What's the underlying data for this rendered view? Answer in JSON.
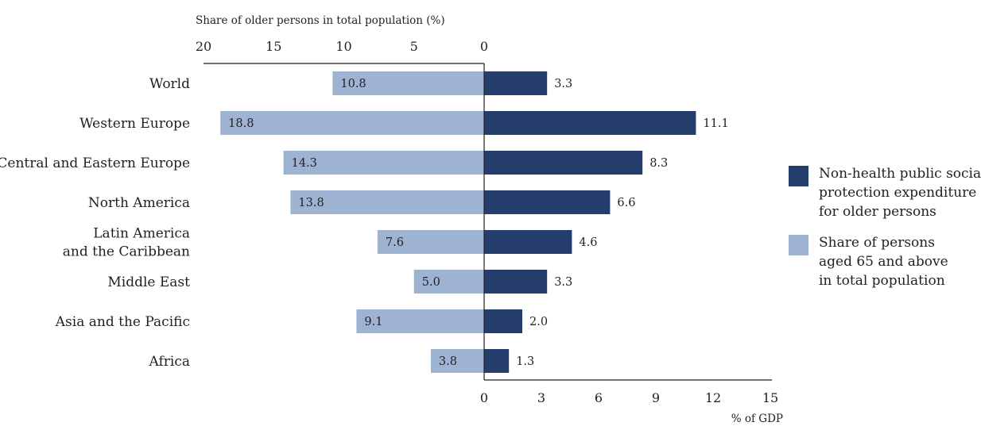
{
  "chart_data": {
    "type": "bar",
    "orientation": "horizontal",
    "layout": "butterfly",
    "categories": [
      "World",
      "Western Europe",
      "Central and Eastern Europe",
      "North America",
      "Latin America and the Caribbean",
      "Middle East",
      "Asia and the Pacific",
      "Africa"
    ],
    "category_display": [
      [
        "World"
      ],
      [
        "Western Europe"
      ],
      [
        "Central and Eastern Europe"
      ],
      [
        "North America"
      ],
      [
        "Latin America",
        "and the Caribbean"
      ],
      [
        "Middle East"
      ],
      [
        "Asia and the Pacific"
      ],
      [
        "Africa"
      ]
    ],
    "series": [
      {
        "name": "Non-health public social protection expenditure for older persons",
        "legend_lines": [
          "Non-health public social",
          "protection expenditure",
          "for older persons"
        ],
        "axis": "bottom",
        "color": "#253d6c",
        "values": [
          3.3,
          11.1,
          8.3,
          6.6,
          4.6,
          3.3,
          2.0,
          1.3
        ],
        "labels": [
          "3.3",
          "11.1",
          "8.3",
          "6.6",
          "4.6",
          "3.3",
          "2.0",
          "1.3"
        ]
      },
      {
        "name": "Share of persons aged 65 and above in total population",
        "legend_lines": [
          "Share of persons",
          "aged 65 and above",
          "in total population"
        ],
        "axis": "top",
        "color": "#9eb3d2",
        "values": [
          10.8,
          18.8,
          14.3,
          13.8,
          7.6,
          5.0,
          9.1,
          3.8
        ],
        "labels": [
          "10.8",
          "18.8",
          "14.3",
          "13.8",
          "7.6",
          "5.0",
          "9.1",
          "3.8"
        ]
      }
    ],
    "top_axis": {
      "label": "Share of older persons in total population (%)",
      "ticks": [
        "20",
        "15",
        "10",
        "5",
        "0"
      ],
      "tick_values": [
        20,
        15,
        10,
        5,
        0
      ],
      "range": [
        0,
        20
      ],
      "direction": "reversed"
    },
    "bottom_axis": {
      "label": "% of GDP",
      "ticks": [
        "0",
        "3",
        "6",
        "9",
        "12",
        "15"
      ],
      "tick_values": [
        0,
        3,
        6,
        9,
        12,
        15
      ],
      "range": [
        0,
        15
      ]
    },
    "grid": false,
    "legend_position": "right"
  }
}
